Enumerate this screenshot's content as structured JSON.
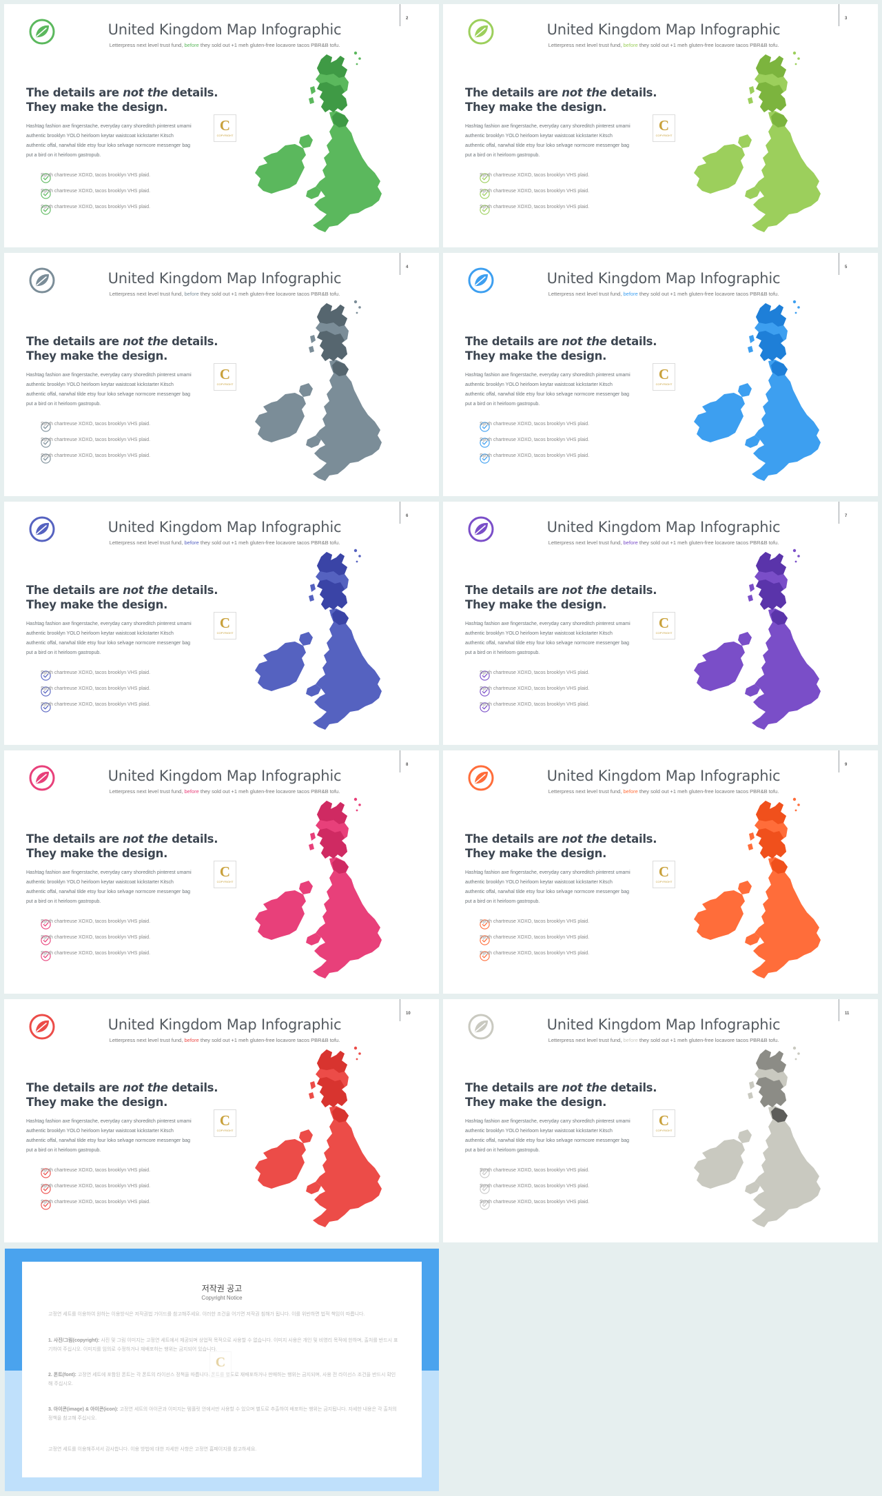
{
  "slide_template": {
    "title": "United Kingdom Map Infographic",
    "subtitle_before": "Letterpress next level trust fund, ",
    "subtitle_highlight": "before",
    "subtitle_after": " they sold out +1 meh gluten-free locavore tacos PBR&B tofu.",
    "heading_line1_a": "The details are ",
    "heading_line1_em": "not the",
    "heading_line1_b": " details.",
    "heading_line2": "They make the design.",
    "body_lines": [
      "Hashtag fashion axe fingerstache, everyday carry shoreditch pinterest umami",
      "authentic brooklyn YOLO heirloom keytar waistcoat kickstarter Kitsch",
      "authentic offal, narwhal tilde etsy four loko selvage normcore messenger bag",
      "put a bird on it heirloom gastropub."
    ],
    "checks": [
      "Synth chartreuse XOXO, tacos brooklyn VHS plaid.",
      "Synth chartreuse XOXO, tacos brooklyn VHS plaid.",
      "Synth chartreuse XOXO, tacos brooklyn VHS plaid."
    ],
    "badge_letter": "C",
    "badge_small": "COPYRIGHT"
  },
  "slides": [
    {
      "page": "2",
      "accent": "#5bb85d",
      "dark": "#3f9a45"
    },
    {
      "page": "3",
      "accent": "#9ccf5c",
      "dark": "#7cb43e"
    },
    {
      "page": "4",
      "accent": "#7b8d98",
      "dark": "#56666f"
    },
    {
      "page": "5",
      "accent": "#3d9ff0",
      "dark": "#1e7fd8"
    },
    {
      "page": "6",
      "accent": "#5562c0",
      "dark": "#3a44a6"
    },
    {
      "page": "7",
      "accent": "#7a4ec8",
      "dark": "#5a34aa"
    },
    {
      "page": "8",
      "accent": "#e8407a",
      "dark": "#cf2a62"
    },
    {
      "page": "9",
      "accent": "#ff6d3a",
      "dark": "#f0501c"
    },
    {
      "page": "10",
      "accent": "#ec4c48",
      "dark": "#d8342f"
    },
    {
      "page": "11",
      "accent": "#c9c9c0",
      "dark": "#8c8c86",
      "check_color": "#c8c8c8"
    }
  ],
  "copyright": {
    "title": "저작권 공고",
    "subtitle": "Copyright Notice",
    "intro": "고정연 세트를 이용하여 원하는 이용방식은 저작권법 가이드를 참고해주세요. 이러한 조건을 어기면 저작권 침해가 됩니다. 이를 위반하면 법적 책임이 따릅니다.",
    "items": [
      {
        "label": "1. 사진/그림(copyright):",
        "text": "사진 및 그림 이미지는 고정연 세트에서 제공되며 상업적 목적으로 사용할 수 없습니다. 이미지 사용은 개인 및 비영리 목적에 한하며, 출처를 반드시 표기하여 주십시오. 이미지를 임의로 수정하거나 재배포하는 행위는 금지되어 있습니다."
      },
      {
        "label": "2. 폰트(font):",
        "text": "고정연 세트에 포함된 폰트는 각 폰트의 라이선스 정책을 따릅니다. 폰트를 별도로 재배포하거나 판매하는 행위는 금지되며, 사용 전 라이선스 조건을 반드시 확인해 주십시오."
      },
      {
        "label": "3. 아이콘(image) & 아이콘(icon):",
        "text": "고정연 세트의 아이콘과 이미지는 템플릿 안에서만 사용할 수 있으며 별도로 추출하여 배포하는 행위는 금지됩니다. 자세한 내용은 각 출처의 정책을 참고해 주십시오."
      }
    ],
    "closing": "고정연 세트를 이용해주셔서 감사합니다. 이용 방법에 대한 자세한 사항은 고정연 홈페이지를 참고하세요."
  }
}
